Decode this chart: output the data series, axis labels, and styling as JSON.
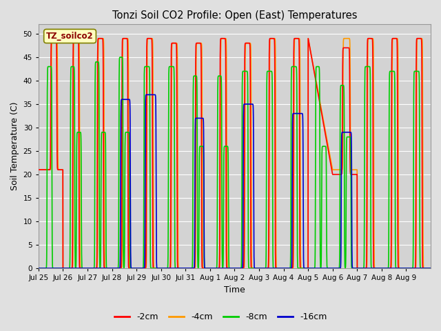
{
  "title": "Tonzi Soil CO2 Profile: Open (East) Temperatures",
  "ylabel": "Soil Temperature (C)",
  "xlabel": "Time",
  "legend_label": "TZ_soilco2",
  "ylim": [
    0,
    52
  ],
  "series": {
    "-2cm": {
      "color": "#FF0000",
      "lw": 1.2
    },
    "-4cm": {
      "color": "#FF9900",
      "lw": 1.2
    },
    "-8cm": {
      "color": "#00CC00",
      "lw": 1.2
    },
    "-16cm": {
      "color": "#0000CC",
      "lw": 1.2
    }
  },
  "legend_items": [
    {
      "label": "-2cm",
      "color": "#FF0000"
    },
    {
      "label": "-4cm",
      "color": "#FF9900"
    },
    {
      "label": "-8cm",
      "color": "#00CC00"
    },
    {
      "label": "-16cm",
      "color": "#0000CC"
    }
  ],
  "tick_labels": [
    "Jul 25",
    "Jul 26",
    "Jul 27",
    "Jul 28",
    "Jul 29",
    "Jul 30",
    "Jul 31",
    "Aug 1",
    "Aug 2",
    "Aug 3",
    "Aug 4",
    "Aug 5",
    "Aug 6",
    "Aug 7",
    "Aug 8",
    "Aug 9"
  ],
  "background_color": "#E0E0E0",
  "plot_bg_color": "#D3D3D3",
  "grid_color": "#FFFFFF",
  "yticks": [
    0,
    5,
    10,
    15,
    20,
    25,
    30,
    35,
    40,
    45,
    50
  ]
}
